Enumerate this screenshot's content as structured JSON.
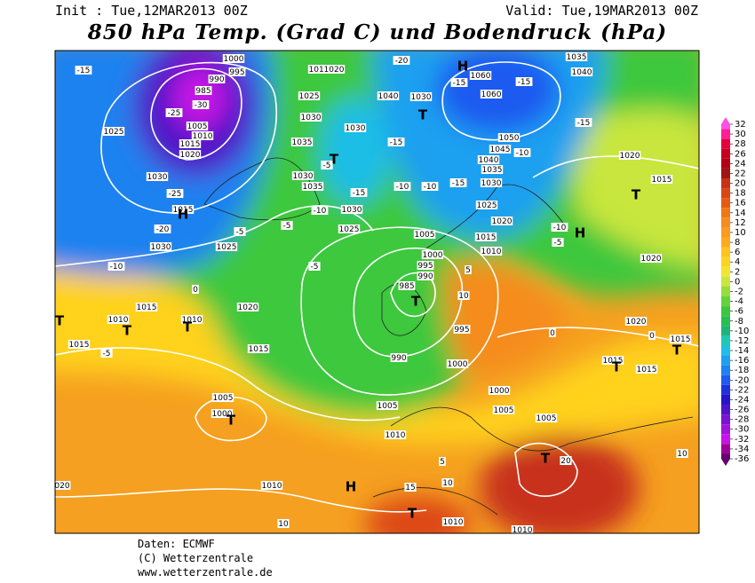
{
  "header": {
    "init": "Init : Tue,12MAR2013 00Z",
    "valid": "Valid: Tue,19MAR2013 00Z",
    "title": "850 hPa Temp. (Grad C) und Bodendruck (hPa)"
  },
  "map": {
    "labels": [
      "1000",
      "995",
      "990",
      "985",
      "-25",
      "-30",
      "1005",
      "1010",
      "1015",
      "1020",
      "1025",
      "1030",
      "-25",
      "1015",
      "H",
      "-20",
      "1030",
      "-10",
      "1025",
      "-5",
      "1020",
      "0",
      "1015",
      "1010",
      "T",
      "1010",
      "T",
      "T",
      "1015",
      "-5",
      "1015",
      "1005",
      "1000",
      "T",
      "1010",
      "H",
      "10",
      "-15",
      "-5",
      "-10",
      "1025",
      "1030",
      "-15",
      "1035",
      "1030",
      "-15",
      "1040",
      "1030",
      "T",
      "-10",
      "-10",
      "-15",
      "1030",
      "1035",
      "1040",
      "1045",
      "1050",
      "1060",
      "1060",
      "H",
      "-15",
      "-15",
      "-15",
      "1035",
      "1040",
      "-20",
      "-10",
      "1025",
      "1020",
      "-10",
      "-5",
      "H",
      "1015",
      "1010",
      "1005",
      "1000",
      "995",
      "990",
      "985",
      "5",
      "10",
      "T",
      "995",
      "990",
      "1000",
      "1000",
      "1005",
      "1010",
      "1005",
      "1005",
      "T",
      "20",
      "T",
      "15",
      "10",
      "5",
      "1010",
      "1010",
      "020",
      "1020",
      "T",
      "1015",
      "1020",
      "1020",
      "0",
      "1015",
      "T",
      "1015",
      "1015",
      "T",
      "10",
      "0",
      "-5",
      "1015",
      "1020",
      "1025",
      "1030",
      "1035",
      "1030",
      "-5",
      "T"
    ]
  },
  "color_scale": {
    "ticks": [
      32,
      30,
      28,
      26,
      24,
      22,
      20,
      18,
      16,
      14,
      12,
      10,
      8,
      6,
      4,
      2,
      0,
      -2,
      -4,
      -6,
      -8,
      -10,
      -12,
      -14,
      -16,
      -18,
      -20,
      -22,
      -24,
      -26,
      -28,
      -30,
      -32,
      -34,
      -36
    ],
    "colors": [
      "#ff50e6",
      "#ff1e96",
      "#e6003c",
      "#c8001e",
      "#b40014",
      "#a01414",
      "#c83214",
      "#dc4614",
      "#e65a14",
      "#f07814",
      "#f58c1e",
      "#fa9b1e",
      "#ffaa1e",
      "#ffc31e",
      "#ffd21e",
      "#f0e632",
      "#c8e63c",
      "#96dc3c",
      "#64d23c",
      "#3cc83c",
      "#28be50",
      "#1eb478",
      "#1ec8b4",
      "#1ebee6",
      "#1ea0f0",
      "#1e82f0",
      "#1e5af0",
      "#1e32dc",
      "#2814c8",
      "#5014c8",
      "#7814d2",
      "#a014dc",
      "#c814e6",
      "#a00096",
      "#64006e"
    ]
  },
  "footer": {
    "source": "Daten: ECMWF",
    "copyright": "(C) Wetterzentrale",
    "url": "www.wetterzentrale.de"
  }
}
